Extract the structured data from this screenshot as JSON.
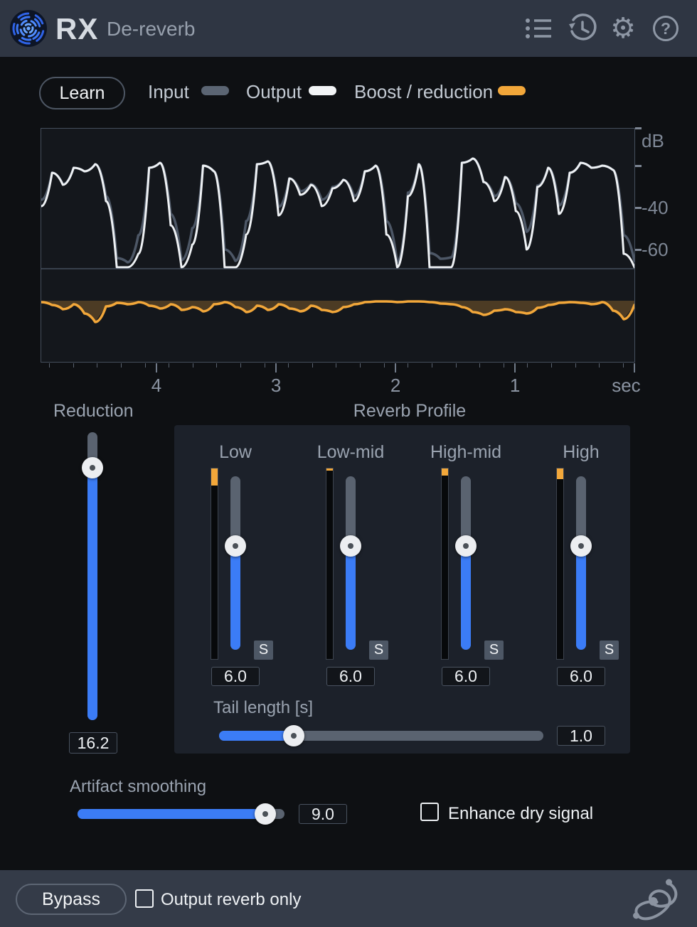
{
  "header": {
    "brand": "RX",
    "title": "De-reverb",
    "icons": [
      "preset-list",
      "history",
      "settings",
      "help"
    ],
    "help_glyph": "?",
    "gear_glyph": "⚙"
  },
  "toolbar": {
    "learn_label": "Learn",
    "legend": [
      {
        "label": "Input",
        "color": "#5b6573"
      },
      {
        "label": "Output",
        "color": "#f2f4f6"
      },
      {
        "label": "Boost / reduction",
        "color": "#f2a73a"
      }
    ]
  },
  "graph": {
    "db_labels": [
      {
        "text": "dB",
        "f": 0.055
      },
      {
        "text": "-40",
        "f": 0.338
      },
      {
        "text": "-60",
        "f": 0.517
      }
    ],
    "db_dashes": [
      0.0,
      0.161,
      0.338,
      0.517
    ],
    "time_labels": [
      {
        "text": "4",
        "f": 0.195
      },
      {
        "text": "3",
        "f": 0.396
      },
      {
        "text": "2",
        "f": 0.597
      },
      {
        "text": "1",
        "f": 0.798
      },
      {
        "text": "sec",
        "f": 0.985
      }
    ],
    "time_majors": [
      0.195,
      0.396,
      0.597,
      0.798,
      0.999
    ],
    "series": {
      "divider_y": 197,
      "baseline_y": 242,
      "colors": {
        "input": "#4d5766",
        "output": "#eef1f4",
        "reduction": "#f2a73a",
        "reduction_fill": "rgba(242,167,58,0.25)"
      },
      "input_y": [
        100,
        62,
        78,
        55,
        60,
        50,
        95,
        182,
        188,
        150,
        55,
        48,
        120,
        185,
        140,
        52,
        60,
        170,
        186,
        130,
        50,
        46,
        110,
        70,
        88,
        78,
        100,
        82,
        72,
        95,
        60,
        52,
        130,
        188,
        90,
        50,
        175,
        183,
        181,
        48,
        42,
        75,
        95,
        68,
        105,
        145,
        80,
        55,
        108,
        62,
        48,
        55,
        52,
        58,
        150,
        186
      ],
      "output_y": [
        109,
        62,
        79,
        55,
        60,
        50,
        102,
        195,
        195,
        176,
        55,
        48,
        136,
        195,
        163,
        52,
        60,
        195,
        195,
        149,
        50,
        46,
        122,
        70,
        93,
        79,
        109,
        84,
        72,
        102,
        60,
        52,
        149,
        195,
        95,
        50,
        195,
        195,
        195,
        48,
        42,
        75,
        102,
        68,
        116,
        170,
        82,
        55,
        120,
        62,
        48,
        55,
        52,
        58,
        176,
        195
      ],
      "reduction_offset": [
        2,
        6,
        12,
        5,
        18,
        30,
        8,
        3,
        5,
        2,
        7,
        11,
        5,
        13,
        9,
        15,
        5,
        2,
        9,
        16,
        7,
        13,
        5,
        11,
        15,
        7,
        13,
        16,
        9,
        5,
        2,
        1,
        1,
        2,
        1,
        1,
        2,
        4,
        5,
        9,
        16,
        20,
        14,
        12,
        16,
        18,
        10,
        6,
        3,
        2,
        3,
        5,
        2,
        14,
        26,
        6
      ]
    }
  },
  "reduction": {
    "label": "Reduction",
    "value": "16.2",
    "fill": 0.876
  },
  "reverb_profile": {
    "title": "Reverb Profile",
    "bands": [
      {
        "label": "Low",
        "value": "6.0",
        "solo": "S",
        "meter": 0.089,
        "fill": 0.6
      },
      {
        "label": "Low-mid",
        "value": "6.0",
        "solo": "S",
        "meter": 0.011,
        "fill": 0.6
      },
      {
        "label": "High-mid",
        "value": "6.0",
        "solo": "S",
        "meter": 0.037,
        "fill": 0.6
      },
      {
        "label": "High",
        "value": "6.0",
        "solo": "S",
        "meter": 0.056,
        "fill": 0.6
      }
    ],
    "tail": {
      "label": "Tail length [s]",
      "value": "1.0",
      "fill": 0.23
    }
  },
  "artifact": {
    "label": "Artifact smoothing",
    "value": "9.0",
    "fill": 0.907
  },
  "enhance": {
    "label": "Enhance dry signal",
    "checked": false
  },
  "footer": {
    "bypass_label": "Bypass",
    "output_reverb_label": "Output reverb only",
    "checked": false
  }
}
